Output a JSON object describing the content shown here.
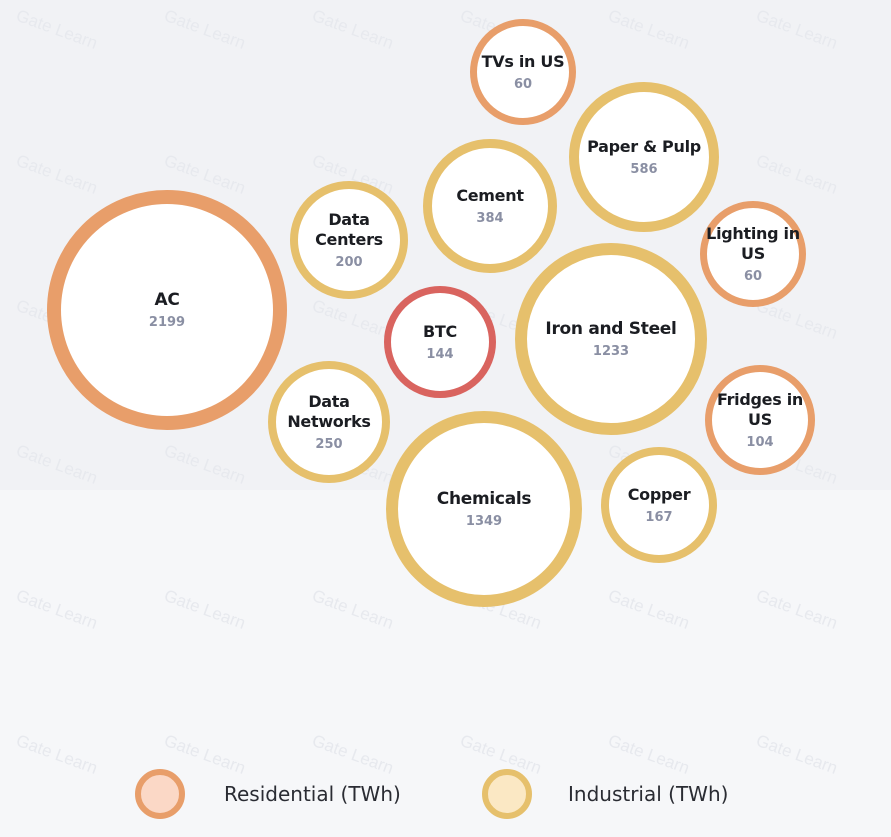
{
  "colors": {
    "background": "#f6f7f9",
    "bubble_fill": "#ffffff",
    "residential": "#e89e6a",
    "industrial": "#e6c06c",
    "btc": "#d9645f",
    "label": "#1b1d22",
    "value": "#8a8fa3"
  },
  "watermark": "Gate Learn",
  "chart_data": {
    "type": "bubble",
    "unit": "TWh",
    "bubbles": [
      {
        "label": "AC",
        "value": 2199,
        "group": "Residential"
      },
      {
        "label": "Chemicals",
        "value": 1349,
        "group": "Industrial"
      },
      {
        "label": "Iron and Steel",
        "value": 1233,
        "group": "Industrial"
      },
      {
        "label": "Paper & Pulp",
        "value": 586,
        "group": "Industrial"
      },
      {
        "label": "Cement",
        "value": 384,
        "group": "Industrial"
      },
      {
        "label": "Data Networks",
        "value": 250,
        "group": "Industrial"
      },
      {
        "label": "Data Centers",
        "value": 200,
        "group": "Industrial"
      },
      {
        "label": "Copper",
        "value": 167,
        "group": "Industrial"
      },
      {
        "label": "BTC",
        "value": 144,
        "group": "BTC"
      },
      {
        "label": "Fridges in US",
        "value": 104,
        "group": "Residential"
      },
      {
        "label": "TVs in US",
        "value": 60,
        "group": "Residential"
      },
      {
        "label": "Lighting in US",
        "value": 60,
        "group": "Residential"
      }
    ],
    "legend": [
      {
        "label": "Residential (TWh)",
        "group": "Residential"
      },
      {
        "label": "Industrial (TWh)",
        "group": "Industrial"
      }
    ],
    "legend_position": "bottom"
  }
}
